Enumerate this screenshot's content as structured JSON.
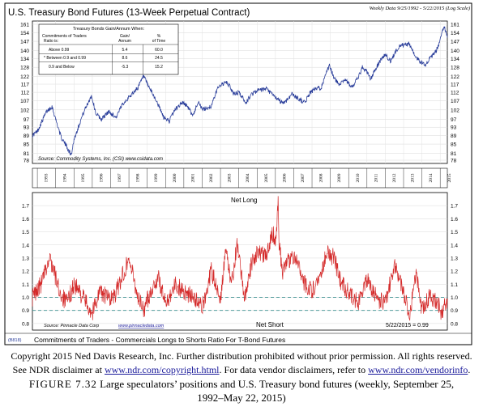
{
  "chart_data": [
    {
      "type": "line",
      "title": "U.S. Treasury Bond Futures (13-Week Perpetual Contract)",
      "header_note": "Weekly Data 9/25/1992 - 5/22/2015 (Log Scale)",
      "y_scale": "log",
      "ylim": [
        78,
        161
      ],
      "y_ticks": [
        "161",
        "154",
        "147",
        "140",
        "134",
        "128",
        "122",
        "117",
        "112",
        "107",
        "102",
        "97",
        "93",
        "89",
        "85",
        "81",
        "78"
      ],
      "x_ticks": [
        "1993",
        "1994",
        "1995",
        "1996",
        "1997",
        "1998",
        "1999",
        "2000",
        "2001",
        "2002",
        "2003",
        "2004",
        "2005",
        "2006",
        "2007",
        "2008",
        "2009",
        "2010",
        "2011",
        "2012",
        "2013",
        "2014",
        "2015"
      ],
      "xlim": [
        1992.73,
        2015.39
      ],
      "grid": true,
      "color": "#2b3f9b",
      "x": [
        1992.73,
        1993.0,
        1993.5,
        1993.8,
        1994.0,
        1994.3,
        1994.6,
        1994.85,
        1995.0,
        1995.5,
        1995.95,
        1996.2,
        1996.5,
        1996.9,
        1997.3,
        1997.7,
        1998.0,
        1998.5,
        1998.8,
        1999.0,
        1999.5,
        1999.9,
        2000.2,
        2000.5,
        2000.9,
        2001.1,
        2001.5,
        2001.8,
        2002.0,
        2002.5,
        2002.9,
        2003.3,
        2003.5,
        2003.7,
        2004.0,
        2004.4,
        2004.7,
        2005.0,
        2005.5,
        2005.9,
        2006.2,
        2006.5,
        2006.9,
        2007.3,
        2007.6,
        2007.9,
        2008.2,
        2008.5,
        2008.95,
        2009.2,
        2009.45,
        2009.8,
        2010.2,
        2010.6,
        2010.75,
        2011.0,
        2011.2,
        2011.6,
        2011.8,
        2012.0,
        2012.3,
        2012.6,
        2012.8,
        2013.0,
        2013.3,
        2013.7,
        2013.9,
        2014.2,
        2014.5,
        2014.8,
        2015.0,
        2015.1,
        2015.25,
        2015.39
      ],
      "values": [
        89,
        91,
        101,
        104,
        97,
        88,
        84,
        80,
        87,
        100,
        110,
        100,
        97,
        101,
        98,
        106,
        109,
        115,
        122,
        117,
        107,
        98,
        96,
        102,
        106,
        105,
        99,
        107,
        102,
        104,
        116,
        118,
        116,
        111,
        112,
        106,
        111,
        113,
        114,
        110,
        107,
        106,
        111,
        108,
        106,
        112,
        114,
        115,
        129,
        121,
        117,
        120,
        115,
        123,
        128,
        125,
        120,
        130,
        134,
        137,
        132,
        140,
        144,
        144,
        145,
        135,
        132,
        130,
        135,
        140,
        148,
        155,
        158,
        150
      ]
    },
    {
      "type": "line",
      "title": "Commitments of Traders - Commercials Longs to Shorts Ratio For T-Bond Futures",
      "ylim": [
        0.75,
        1.8
      ],
      "y_ticks": [
        "1.7",
        "1.6",
        "1.5",
        "1.4",
        "1.3",
        "1.2",
        "1.1",
        "1.0",
        "0.9",
        "0.8"
      ],
      "xlim": [
        1992.73,
        2015.39
      ],
      "grid": true,
      "color": "#d42a2a",
      "reference_lines": [
        1.0,
        0.9
      ],
      "annotations": [
        "Net Long",
        "Net Short",
        "5/22/2015 = 0.99"
      ],
      "x": [
        1992.73,
        1993.2,
        1993.7,
        1994.2,
        1994.6,
        1995.0,
        1995.5,
        1996.0,
        1996.4,
        1996.8,
        1997.2,
        1997.6,
        1998.0,
        1998.5,
        1998.8,
        1999.2,
        1999.6,
        2000.0,
        2000.5,
        2001.0,
        2001.5,
        2002.0,
        2002.5,
        2003.0,
        2003.3,
        2003.6,
        2003.9,
        2004.3,
        2004.7,
        2005.0,
        2005.5,
        2005.8,
        2006.0,
        2006.1,
        2006.15,
        2006.2,
        2006.4,
        2006.8,
        2007.2,
        2007.6,
        2008.0,
        2008.4,
        2008.8,
        2009.2,
        2009.6,
        2010.0,
        2010.5,
        2011.0,
        2011.5,
        2012.0,
        2012.5,
        2013.0,
        2013.3,
        2013.7,
        2014.0,
        2014.4,
        2014.8,
        2015.1,
        2015.39
      ],
      "values": [
        1.0,
        1.1,
        1.3,
        1.05,
        0.95,
        1.1,
        1.0,
        0.88,
        1.05,
        1.0,
        1.0,
        1.15,
        1.3,
        1.0,
        0.9,
        1.05,
        1.15,
        0.95,
        1.1,
        1.05,
        1.0,
        0.92,
        1.2,
        1.0,
        1.35,
        1.1,
        1.4,
        1.0,
        1.25,
        1.35,
        1.3,
        1.5,
        1.45,
        1.6,
        1.76,
        1.4,
        1.2,
        1.3,
        1.3,
        1.1,
        1.05,
        1.15,
        1.35,
        1.3,
        1.1,
        1.05,
        0.95,
        1.15,
        1.0,
        0.95,
        1.25,
        1.05,
        0.85,
        1.2,
        0.9,
        1.0,
        0.97,
        0.88,
        0.99
      ]
    }
  ],
  "inset_table": {
    "title": "Treasury Bonds Gain/Annum When:",
    "col1_header": [
      "Commitments of Traders",
      "Ratio is:"
    ],
    "col2_header": [
      "Gain/",
      "Annum"
    ],
    "col3_header": [
      "%",
      "of Time"
    ],
    "rows": [
      {
        "label": "Above 0.99",
        "gain": "5.4",
        "pct": "60.0"
      },
      {
        "label": "* Between 0.9 and 0.99",
        "gain": "8.6",
        "pct": "24.5"
      },
      {
        "label": "0.9 and Below",
        "gain": "-5.3",
        "pct": "15.2"
      }
    ]
  },
  "sources": {
    "top": "Source: Commodity Systems, Inc. (CSI) www.csidata.com",
    "bottom_prefix": "Source: Pinnacle Data Corp",
    "bottom_link": "www.pinnacledata.com"
  },
  "chart_id": "(B818)",
  "caption": {
    "line1": "Copyright 2015 Ned Davis Research, Inc. Further distribution prohibited without prior permission. All rights reserved.",
    "line2_a": "See NDR disclaimer at ",
    "link1": "www.ndr.com/copyright.html",
    "line2_b": ". For data vendor disclaimers, refer to ",
    "link2": "www.ndr.com/vendorinfo",
    "line2_c": ".",
    "figure_label": "FIGURE 7.32",
    "figure_text_1": "Large speculators’ positions and U.S. Treasury bond futures (weekly, September 25,",
    "figure_text_2": "1992–May 22, 2015)"
  },
  "colors": {
    "price_line": "#2b3f9b",
    "ratio_line": "#d42a2a",
    "reference_line": "#3a8f8f",
    "link": "#1a1a9a"
  }
}
